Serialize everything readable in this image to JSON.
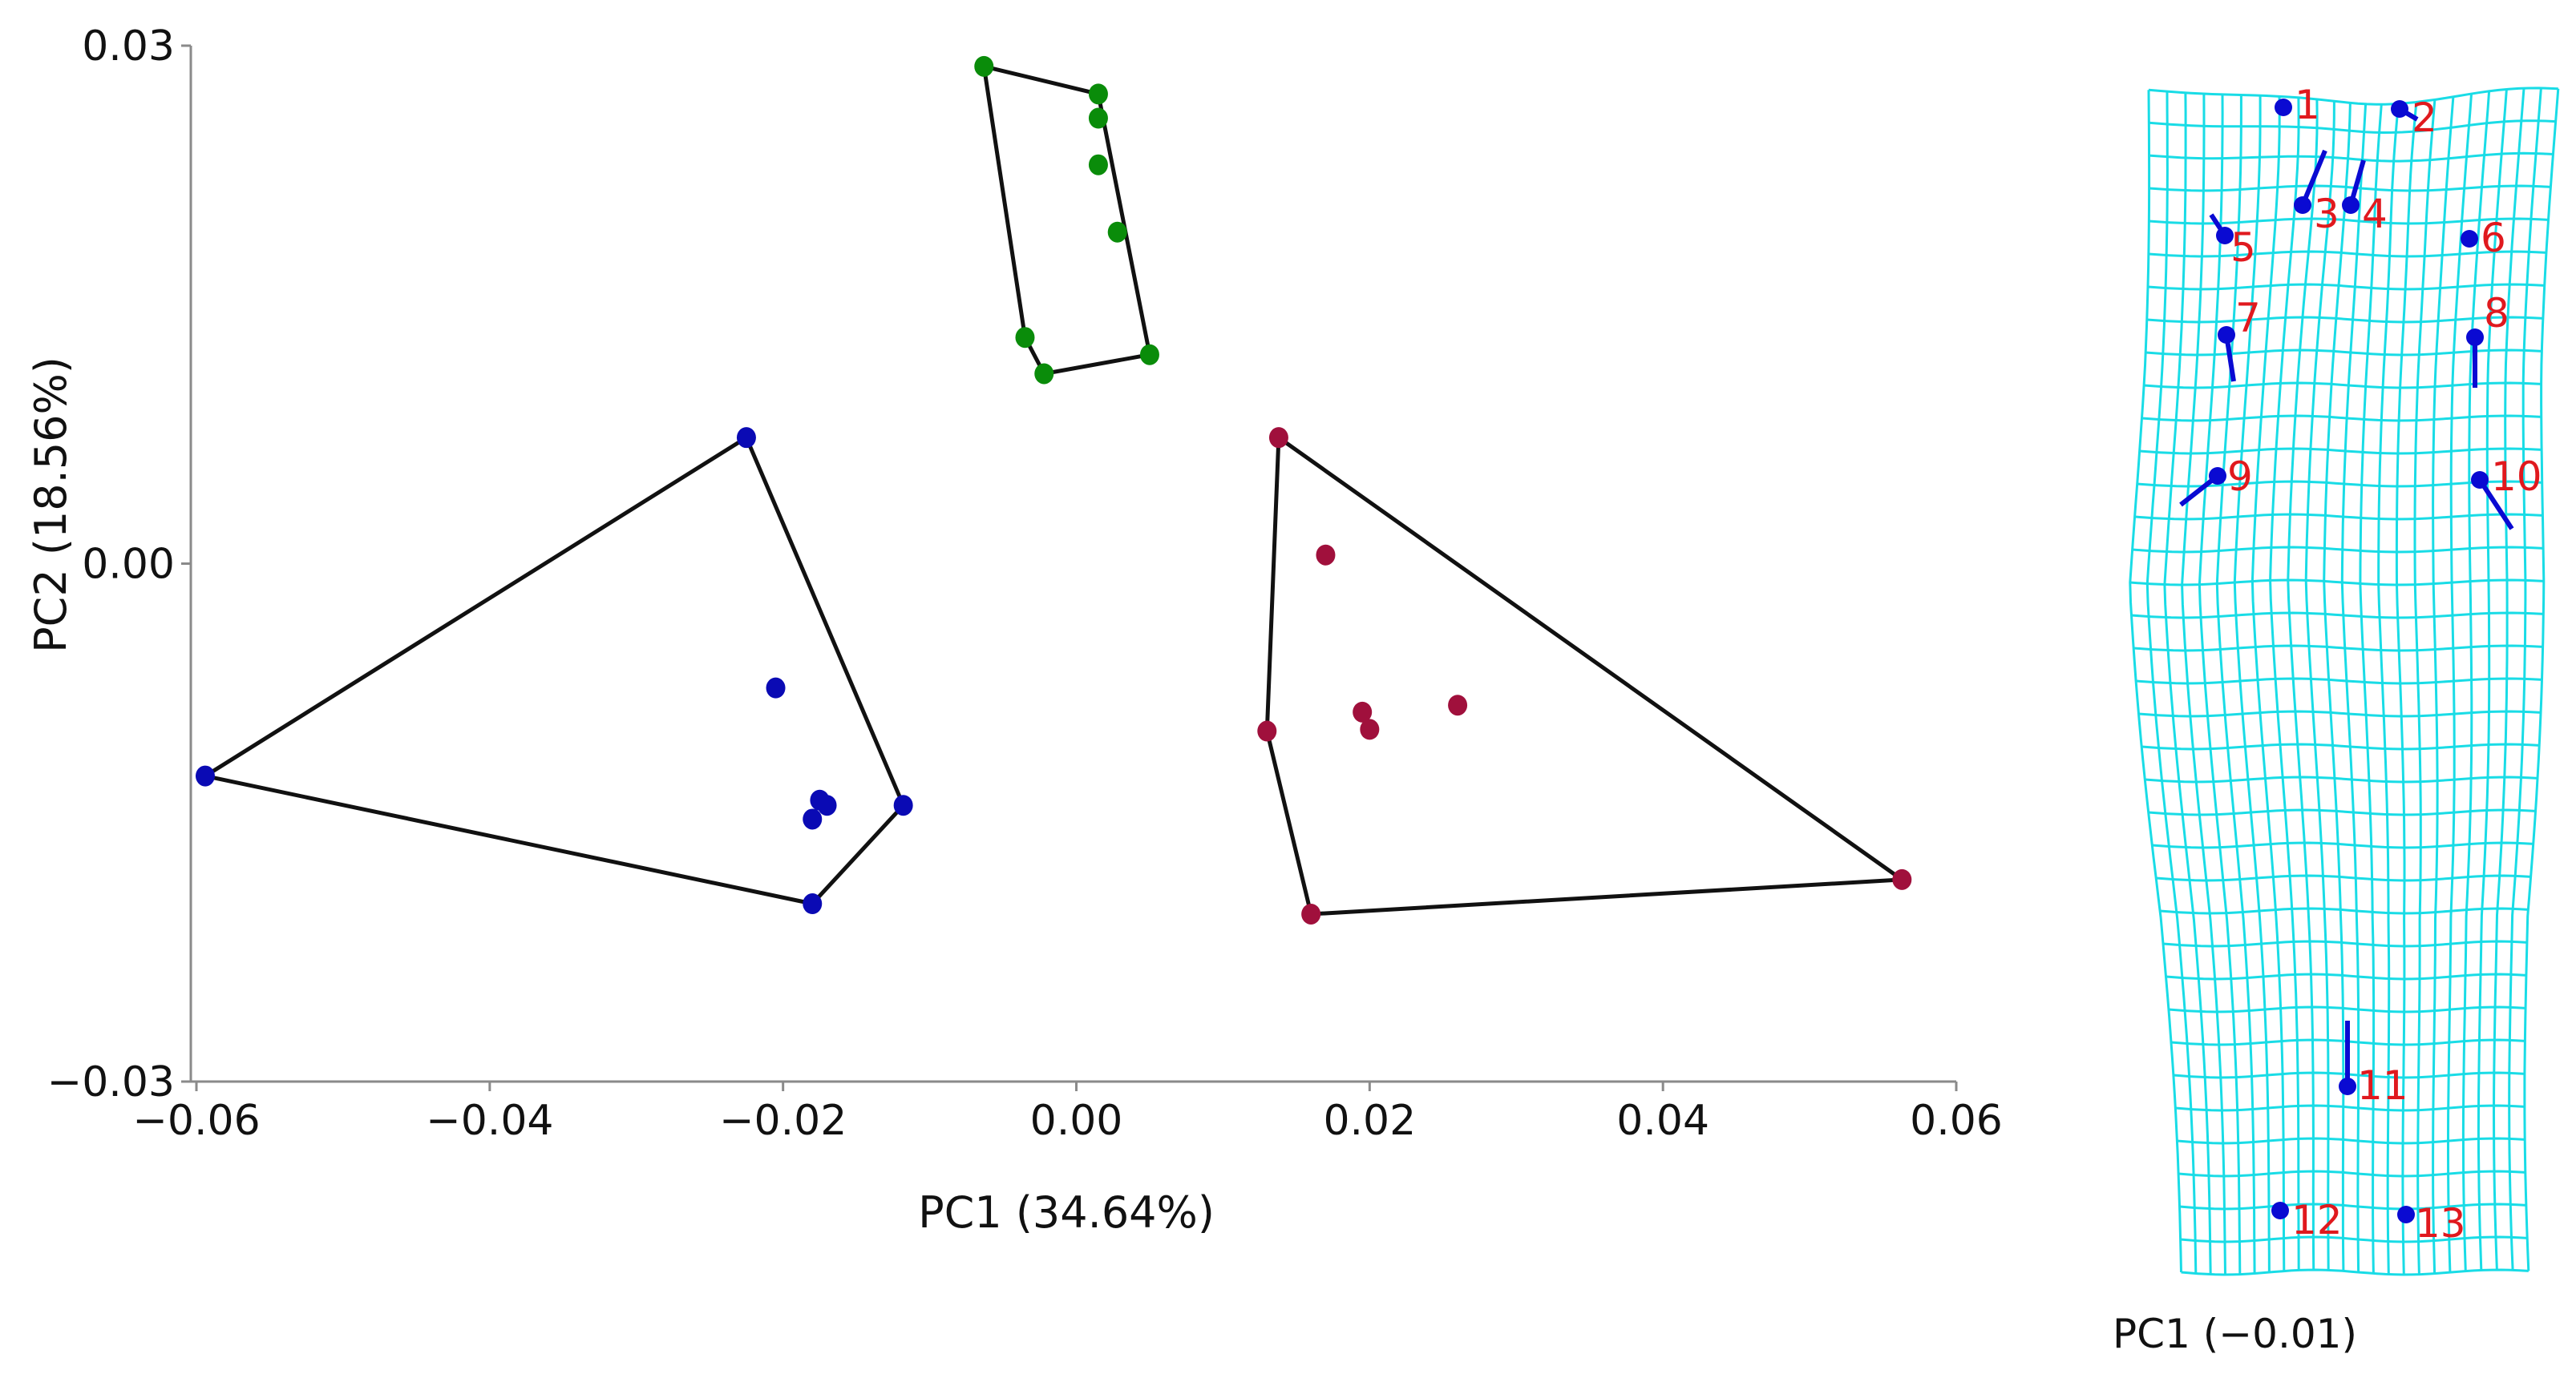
{
  "chart_data": [
    {
      "type": "scatter",
      "xlabel": "PC1 (34.64%)",
      "ylabel": "PC2 (18.56%)",
      "xlim": [
        -0.06,
        0.06
      ],
      "ylim": [
        -0.03,
        0.03
      ],
      "x_ticks": [
        -0.06,
        -0.04,
        -0.02,
        0.0,
        0.02,
        0.04,
        0.06
      ],
      "x_tick_labels": [
        "−0.06",
        "−0.04",
        "−0.02",
        "0.00",
        "0.02",
        "0.04",
        "0.06"
      ],
      "y_ticks": [
        0.03,
        0.0,
        -0.03
      ],
      "y_tick_labels": [
        "0.03",
        "0.00",
        "−0.03"
      ],
      "grid": false,
      "series": [
        {
          "color": "#0a0ab4",
          "points": [
            [
              -0.0594,
              -0.0123
            ],
            [
              -0.0225,
              0.0073
            ],
            [
              -0.0205,
              -0.0072
            ],
            [
              -0.0175,
              -0.0137
            ],
            [
              -0.017,
              -0.014
            ],
            [
              -0.018,
              -0.0148
            ],
            [
              -0.0118,
              -0.014
            ],
            [
              -0.018,
              -0.0197
            ]
          ],
          "hull": [
            [
              -0.0594,
              -0.0123
            ],
            [
              -0.0225,
              0.0073
            ],
            [
              -0.0118,
              -0.014
            ],
            [
              -0.018,
              -0.0197
            ]
          ]
        },
        {
          "color": "#0a8c0a",
          "points": [
            [
              -0.0063,
              0.0288
            ],
            [
              0.0015,
              0.0272
            ],
            [
              0.0015,
              0.0258
            ],
            [
              0.0015,
              0.0231
            ],
            [
              0.0028,
              0.0192
            ],
            [
              -0.0035,
              0.0131
            ],
            [
              -0.0022,
              0.011
            ],
            [
              0.005,
              0.0121
            ]
          ],
          "hull": [
            [
              -0.0063,
              0.0288
            ],
            [
              0.0015,
              0.0272
            ],
            [
              0.005,
              0.0121
            ],
            [
              -0.0022,
              0.011
            ],
            [
              -0.0035,
              0.0131
            ]
          ]
        },
        {
          "color": "#a0103c",
          "points": [
            [
              0.0138,
              0.0073
            ],
            [
              0.017,
              0.0005
            ],
            [
              0.0195,
              -0.0086
            ],
            [
              0.02,
              -0.0096
            ],
            [
              0.026,
              -0.0082
            ],
            [
              0.013,
              -0.0097
            ],
            [
              0.016,
              -0.0203
            ],
            [
              0.0563,
              -0.0183
            ]
          ],
          "hull": [
            [
              0.0138,
              0.0073
            ],
            [
              0.0563,
              -0.0183
            ],
            [
              0.016,
              -0.0203
            ],
            [
              0.013,
              -0.0097
            ]
          ]
        }
      ]
    },
    {
      "type": "other",
      "caption": "PC1 (−0.01)",
      "grid_color": "#19dce6",
      "landmark_color": "#0a0ad2",
      "label_color": "#e0191e",
      "landmarks": [
        {
          "label": "1"
        },
        {
          "label": "2"
        },
        {
          "label": "3"
        },
        {
          "label": "4"
        },
        {
          "label": "5"
        },
        {
          "label": "6"
        },
        {
          "label": "7"
        },
        {
          "label": "8"
        },
        {
          "label": "9"
        },
        {
          "label": "10"
        },
        {
          "label": "11"
        },
        {
          "label": "12"
        },
        {
          "label": "13"
        }
      ]
    }
  ]
}
